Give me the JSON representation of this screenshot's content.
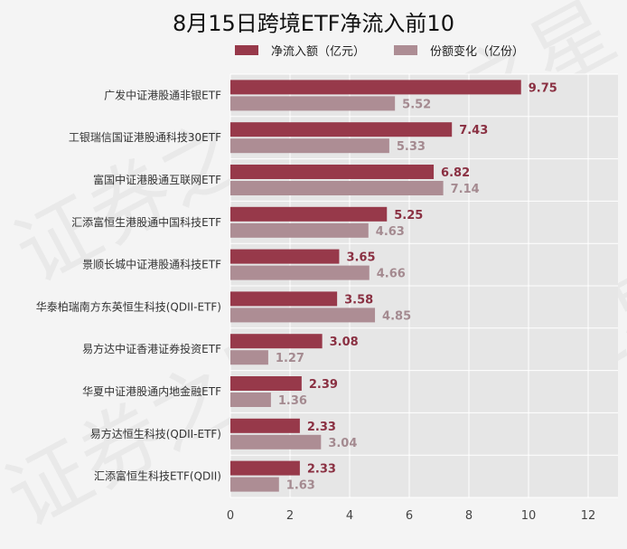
{
  "chart_data": {
    "type": "bar",
    "orientation": "horizontal",
    "title": "8月15日跨境ETF净流入前10",
    "categories": [
      "广发中证港股通非银ETF",
      "工银瑞信国证港股通科技30ETF",
      "富国中证港股通互联网ETF",
      "汇添富恒生港股通中国科技ETF",
      "景顺长城中证港股通科技ETF",
      "华泰柏瑞南方东英恒生科技(QDII-ETF)",
      "易方达中证香港证券投资ETF",
      "华夏中证港股通内地金融ETF",
      "易方达恒生科技(QDII-ETF)",
      "汇添富恒生科技ETF(QDII)"
    ],
    "series": [
      {
        "name": "净流入额（亿元）",
        "color": "#97394a",
        "label_color": "#8a3042",
        "values": [
          9.75,
          7.43,
          6.82,
          5.25,
          3.65,
          3.58,
          3.08,
          2.39,
          2.33,
          2.33
        ]
      },
      {
        "name": "份额变化（亿份）",
        "color": "#ad8d94",
        "label_color": "#a48a90",
        "values": [
          5.52,
          5.33,
          7.14,
          4.63,
          4.66,
          4.85,
          1.27,
          1.36,
          3.04,
          1.63
        ]
      }
    ],
    "xlim": [
      0,
      13
    ],
    "xticks": [
      0,
      2,
      4,
      6,
      8,
      10,
      12
    ],
    "grid": true,
    "legend_position": "top",
    "plot_background": "#e6e6e6"
  },
  "watermark": "证券之星"
}
